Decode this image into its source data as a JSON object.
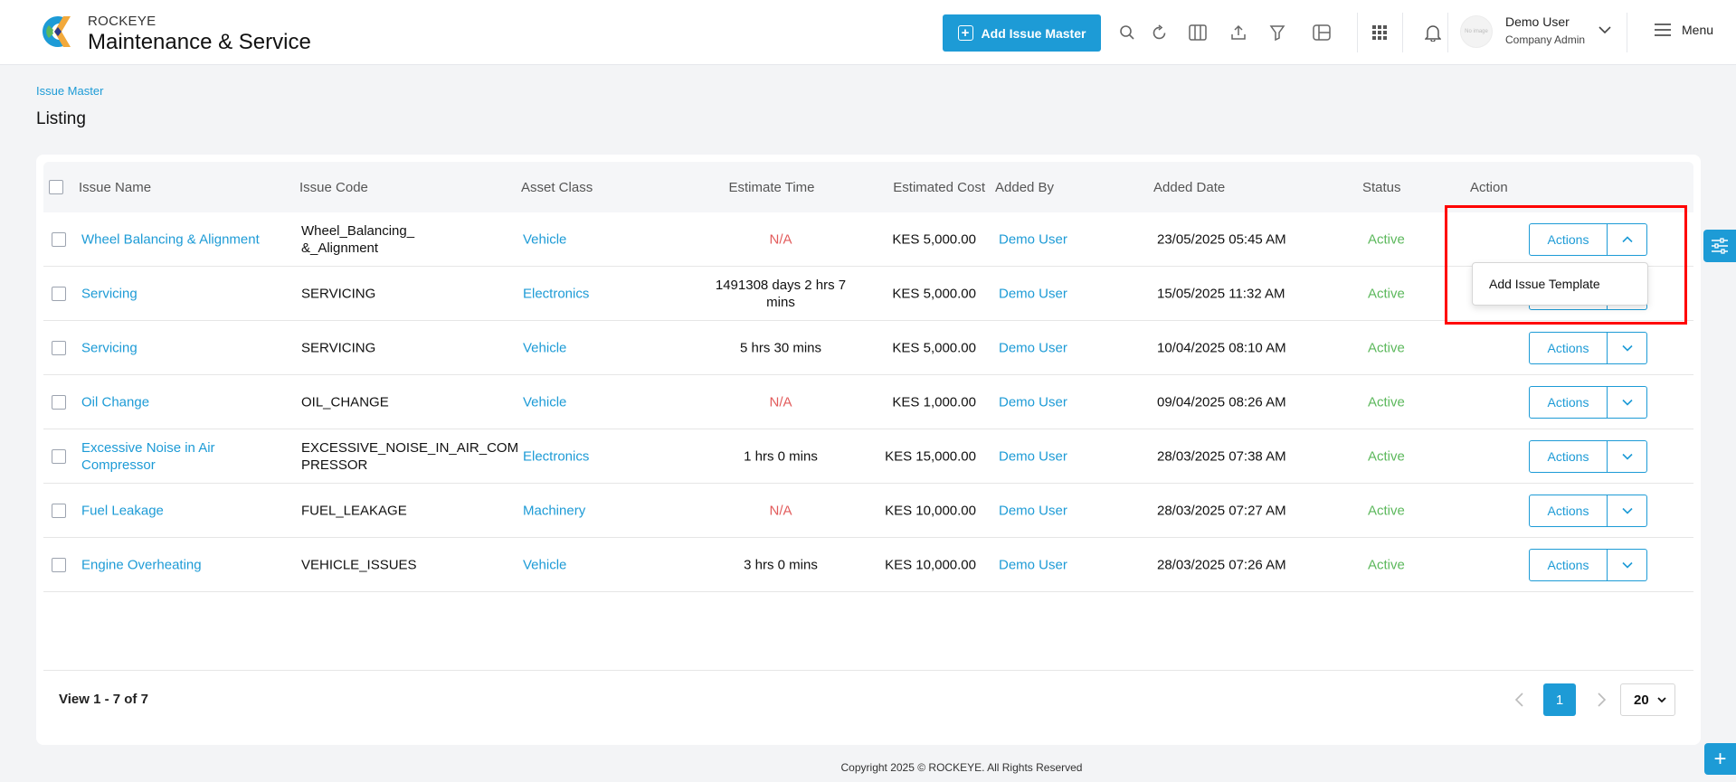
{
  "brand": {
    "top": "ROCKEYE",
    "bottom": "Maintenance & Service"
  },
  "header": {
    "add_button": "Add Issue Master",
    "icons": [
      "search-icon",
      "refresh-icon",
      "columns-icon",
      "export-icon",
      "filter-icon",
      "layout-icon",
      "apps-grid-icon",
      "bell-icon"
    ],
    "avatar_text": "No image",
    "user_name": "Demo User",
    "user_role": "Company Admin",
    "menu_label": "Menu"
  },
  "breadcrumb": "Issue Master",
  "page_title": "Listing",
  "table": {
    "columns": [
      "Issue Name",
      "Issue Code",
      "Asset Class",
      "Estimate Time",
      "Estimated Cost",
      "Added By",
      "Added Date",
      "Status",
      "Action"
    ],
    "rows": [
      {
        "name": "Wheel Balancing & Alignment",
        "code_l1": "Wheel_Balancing_",
        "code_l2": "&_Alignment",
        "asset": "Vehicle",
        "time_l1": "N/A",
        "time_l2": "",
        "cost": "KES 5,000.00",
        "added_by": "Demo User",
        "date": "23/05/2025 05:45 AM",
        "status": "Active",
        "action": "Actions"
      },
      {
        "name": "Servicing",
        "code_l1": "SERVICING",
        "code_l2": "",
        "asset": "Electronics",
        "time_l1": "1491308 days 2 hrs 7",
        "time_l2": "mins",
        "cost": "KES 5,000.00",
        "added_by": "Demo User",
        "date": "15/05/2025 11:32 AM",
        "status": "Active",
        "action": "Actions"
      },
      {
        "name": "Servicing",
        "code_l1": "SERVICING",
        "code_l2": "",
        "asset": "Vehicle",
        "time_l1": "5 hrs 30 mins",
        "time_l2": "",
        "cost": "KES 5,000.00",
        "added_by": "Demo User",
        "date": "10/04/2025 08:10 AM",
        "status": "Active",
        "action": "Actions"
      },
      {
        "name": "Oil Change",
        "code_l1": "OIL_CHANGE",
        "code_l2": "",
        "asset": "Vehicle",
        "time_l1": "N/A",
        "time_l2": "",
        "cost": "KES 1,000.00",
        "added_by": "Demo User",
        "date": "09/04/2025 08:26 AM",
        "status": "Active",
        "action": "Actions"
      },
      {
        "name": "Excessive Noise in Air Compressor",
        "code_l1": "EXCESSIVE_NOISE_IN_AIR_COM",
        "code_l2": "PRESSOR",
        "asset": "Electronics",
        "time_l1": "1 hrs 0 mins",
        "time_l2": "",
        "cost": "KES 15,000.00",
        "added_by": "Demo User",
        "date": "28/03/2025 07:38 AM",
        "status": "Active",
        "action": "Actions"
      },
      {
        "name": "Fuel Leakage",
        "code_l1": "FUEL_LEAKAGE",
        "code_l2": "",
        "asset": "Machinery",
        "time_l1": "N/A",
        "time_l2": "",
        "cost": "KES 10,000.00",
        "added_by": "Demo User",
        "date": "28/03/2025 07:27 AM",
        "status": "Active",
        "action": "Actions"
      },
      {
        "name": "Engine Overheating",
        "code_l1": "VEHICLE_ISSUES",
        "code_l2": "",
        "asset": "Vehicle",
        "time_l1": "3 hrs 0 mins",
        "time_l2": "",
        "cost": "KES 10,000.00",
        "added_by": "Demo User",
        "date": "28/03/2025 07:26 AM",
        "status": "Active",
        "action": "Actions"
      }
    ]
  },
  "dropdown": {
    "item": "Add Issue Template"
  },
  "pagination": {
    "view": "View 1 - 7 of 7",
    "current_page": "1",
    "page_size": "20"
  },
  "footer": {
    "copyright": "Copyright 2025 © ROCKEYE. All Rights Reserved"
  },
  "colors": {
    "accent": "#1d9bd6",
    "active": "#5cb85c",
    "na": "#e25b5b",
    "highlight": "#ff0000"
  }
}
